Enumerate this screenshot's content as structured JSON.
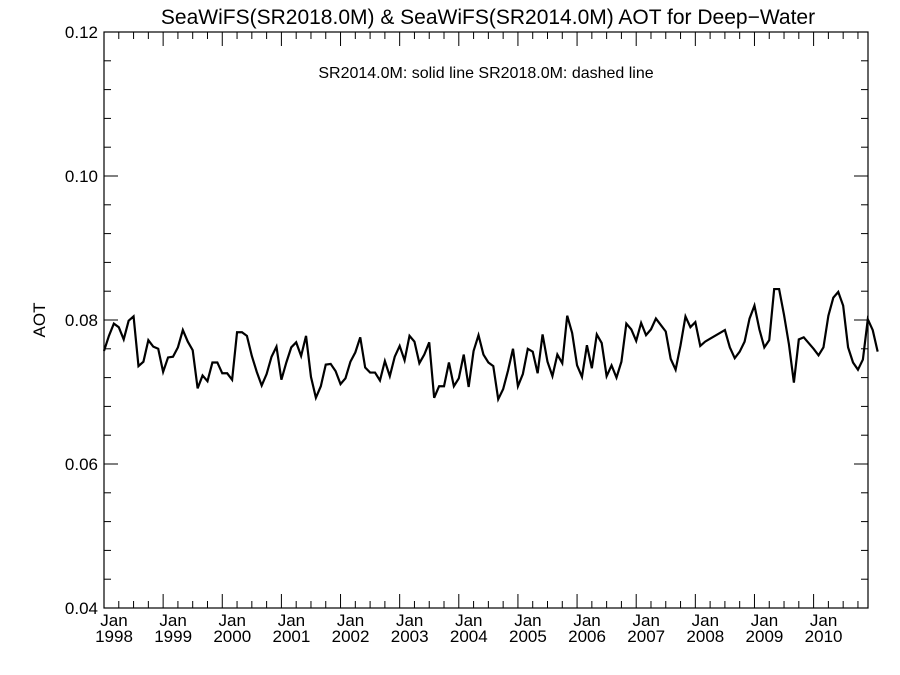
{
  "chart_data": {
    "type": "line",
    "title": "SeaWiFS(SR2018.0M) & SeaWiFS(SR2014.0M)  AOT for Deep−Water",
    "xlabel": "",
    "ylabel": "AOT",
    "annotation": "SR2014.0M: solid line   SR2018.0M: dashed line",
    "ylim": [
      0.04,
      0.12
    ],
    "xlim": [
      1998.0,
      2010.92
    ],
    "y_ticks": [
      "0.04",
      "0.06",
      "0.08",
      "0.10",
      "0.12"
    ],
    "y_tick_values": [
      0.04,
      0.06,
      0.08,
      0.1,
      0.12
    ],
    "x_ticks": [
      {
        "month": "Jan",
        "year": "1998",
        "x": 1998.0
      },
      {
        "month": "Jan",
        "year": "1999",
        "x": 1999.0
      },
      {
        "month": "Jan",
        "year": "2000",
        "x": 2000.0
      },
      {
        "month": "Jan",
        "year": "2001",
        "x": 2001.0
      },
      {
        "month": "Jan",
        "year": "2002",
        "x": 2002.0
      },
      {
        "month": "Jan",
        "year": "2003",
        "x": 2003.0
      },
      {
        "month": "Jan",
        "year": "2004",
        "x": 2004.0
      },
      {
        "month": "Jan",
        "year": "2005",
        "x": 2005.0
      },
      {
        "month": "Jan",
        "year": "2006",
        "x": 2006.0
      },
      {
        "month": "Jan",
        "year": "2007",
        "x": 2007.0
      },
      {
        "month": "Jan",
        "year": "2008",
        "x": 2008.0
      },
      {
        "month": "Jan",
        "year": "2009",
        "x": 2009.0
      },
      {
        "month": "Jan",
        "year": "2010",
        "x": 2010.0
      }
    ],
    "grid": false,
    "series": [
      {
        "line_style": "solid",
        "color": "#000000",
        "start_year": 1998,
        "values": [
          0.0757,
          0.0778,
          0.0795,
          0.079,
          0.0773,
          0.0799,
          0.0805,
          0.0736,
          0.0742,
          0.0772,
          0.0763,
          0.076,
          0.0728,
          0.0748,
          0.0749,
          0.0762,
          0.0786,
          0.077,
          0.0758,
          0.0705,
          0.0723,
          0.0715,
          0.0741,
          0.0741,
          0.0726,
          0.0726,
          0.0717,
          0.0783,
          0.0783,
          0.0778,
          0.075,
          0.0728,
          0.0709,
          0.0725,
          0.0749,
          0.0763,
          0.0717,
          0.0741,
          0.0762,
          0.0769,
          0.075,
          0.0778,
          0.0721,
          0.0692,
          0.0708,
          0.0738,
          0.0739,
          0.0729,
          0.0711,
          0.0719,
          0.0742,
          0.0755,
          0.0776,
          0.0734,
          0.0727,
          0.0727,
          0.0716,
          0.0743,
          0.0722,
          0.0749,
          0.0764,
          0.0744,
          0.0778,
          0.077,
          0.074,
          0.0752,
          0.0769,
          0.0692,
          0.0708,
          0.0708,
          0.0741,
          0.0708,
          0.0719,
          0.0752,
          0.0707,
          0.0757,
          0.0779,
          0.0752,
          0.0741,
          0.0736,
          0.069,
          0.0704,
          0.073,
          0.076,
          0.0708,
          0.0725,
          0.076,
          0.0756,
          0.0726,
          0.078,
          0.0742,
          0.0722,
          0.0752,
          0.074,
          0.0806,
          0.0782,
          0.0737,
          0.0721,
          0.0765,
          0.0733,
          0.078,
          0.0768,
          0.0722,
          0.0737,
          0.072,
          0.0742,
          0.0795,
          0.0787,
          0.0771,
          0.0796,
          0.0779,
          0.0787,
          0.0802,
          0.0793,
          0.0784,
          0.0746,
          0.0731,
          0.0765,
          0.0805,
          0.079,
          0.0797,
          0.0764,
          0.077,
          0.0774,
          0.0778,
          0.0782,
          0.0786,
          0.0762,
          0.0747,
          0.0756,
          0.077,
          0.0802,
          0.082,
          0.0787,
          0.0762,
          0.0772,
          0.0843,
          0.0843,
          0.0807,
          0.0766,
          0.0713,
          0.0773,
          0.0776,
          0.0768,
          0.076,
          0.0751,
          0.0762,
          0.0806,
          0.0831,
          0.0839,
          0.082,
          0.0762,
          0.0741,
          0.0731,
          0.0745,
          0.0801,
          0.0786,
          0.0756
        ]
      }
    ]
  }
}
